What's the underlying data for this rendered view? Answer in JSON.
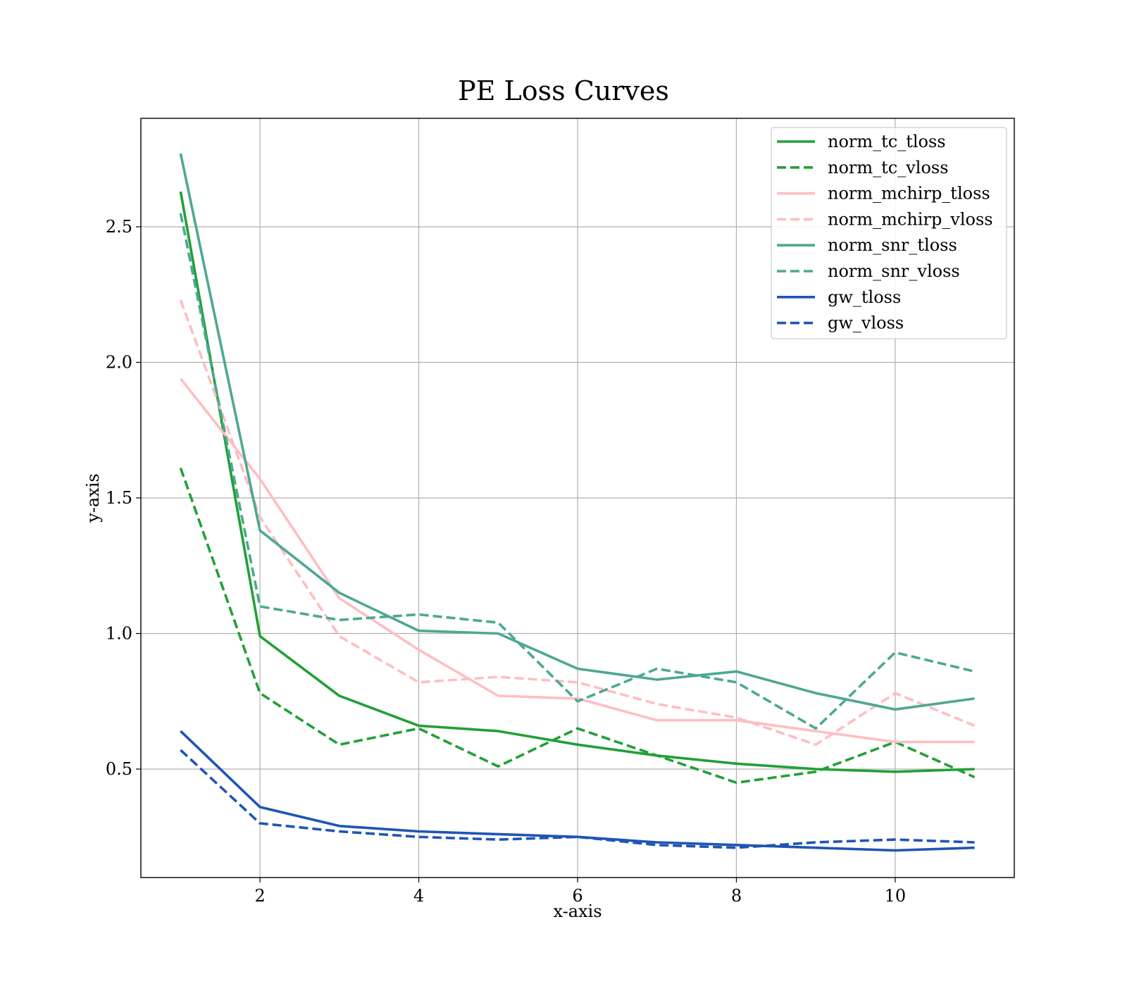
{
  "chart_data": {
    "type": "line",
    "title": "PE Loss Curves",
    "xlabel": "x-axis",
    "ylabel": "y-axis",
    "xlim": [
      0.5,
      11.5
    ],
    "ylim": [
      0.1,
      2.9
    ],
    "xticks": [
      2,
      4,
      6,
      8,
      10
    ],
    "yticks": [
      0.5,
      1.0,
      1.5,
      2.0,
      2.5
    ],
    "xtick_labels": [
      "2",
      "4",
      "6",
      "8",
      "10"
    ],
    "ytick_labels": [
      "0.5",
      "1.0",
      "1.5",
      "2.0",
      "2.5"
    ],
    "grid": true,
    "legend_position": "top-right",
    "x": [
      1,
      2,
      3,
      4,
      5,
      6,
      7,
      8,
      9,
      10,
      11
    ],
    "series": [
      {
        "name": "norm_tc_tloss",
        "color": "#22a037",
        "style": "solid",
        "values": [
          2.63,
          0.99,
          0.77,
          0.66,
          0.64,
          0.59,
          0.55,
          0.52,
          0.5,
          0.49,
          0.5
        ]
      },
      {
        "name": "norm_tc_vloss",
        "color": "#22a037",
        "style": "dashed",
        "values": [
          1.61,
          0.78,
          0.59,
          0.65,
          0.51,
          0.65,
          0.55,
          0.45,
          0.49,
          0.6,
          0.47
        ]
      },
      {
        "name": "norm_mchirp_tloss",
        "color": "#ffbec2",
        "style": "solid",
        "values": [
          1.94,
          1.57,
          1.13,
          0.94,
          0.77,
          0.76,
          0.68,
          0.68,
          0.64,
          0.6,
          0.6
        ]
      },
      {
        "name": "norm_mchirp_vloss",
        "color": "#ffbec2",
        "style": "dashed",
        "values": [
          2.23,
          1.43,
          0.99,
          0.82,
          0.84,
          0.82,
          0.74,
          0.69,
          0.59,
          0.78,
          0.66
        ]
      },
      {
        "name": "norm_snr_tloss",
        "color": "#4da892",
        "style": "solid",
        "values": [
          2.77,
          1.38,
          1.15,
          1.01,
          1.0,
          0.87,
          0.83,
          0.86,
          0.78,
          0.72,
          0.76
        ]
      },
      {
        "name": "norm_snr_vloss",
        "color": "#4da892",
        "style": "dashed",
        "values": [
          2.55,
          1.1,
          1.05,
          1.07,
          1.04,
          0.75,
          0.87,
          0.82,
          0.65,
          0.93,
          0.86
        ]
      },
      {
        "name": "gw_tloss",
        "color": "#1f55b4",
        "style": "solid",
        "values": [
          0.64,
          0.36,
          0.29,
          0.27,
          0.26,
          0.25,
          0.23,
          0.22,
          0.21,
          0.2,
          0.21
        ]
      },
      {
        "name": "gw_vloss",
        "color": "#1f55b4",
        "style": "dashed",
        "values": [
          0.57,
          0.3,
          0.27,
          0.25,
          0.24,
          0.25,
          0.22,
          0.21,
          0.23,
          0.24,
          0.23
        ]
      }
    ]
  }
}
